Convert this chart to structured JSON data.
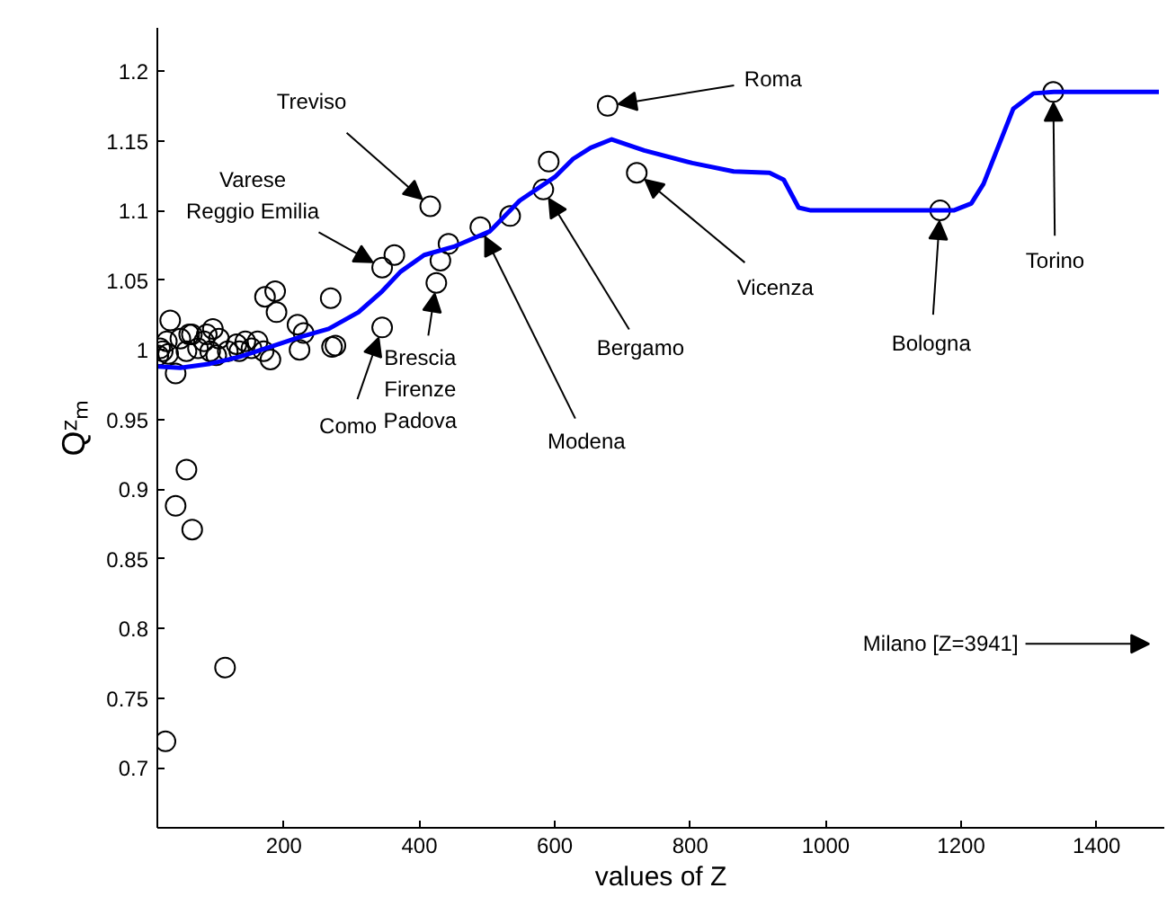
{
  "chart_data": {
    "type": "scatter",
    "xlabel": "values of Z",
    "ylabel": "Qᶻₘ",
    "xlim": [
      13,
      1500
    ],
    "ylim": [
      0.657,
      1.231
    ],
    "xticks": [
      200,
      400,
      600,
      800,
      1000,
      1200,
      1400
    ],
    "yticks": [
      0.7,
      0.75,
      0.8,
      0.85,
      0.9,
      0.95,
      1,
      1.05,
      1.1,
      1.15,
      1.2
    ],
    "series": [
      {
        "color": "#000000",
        "marker": "circle",
        "x": [
          416,
          345,
          363,
          345,
          425,
          431,
          443,
          490,
          534,
          583,
          591,
          678,
          721,
          1169,
          1336,
          56,
          40,
          64.5,
          113,
          25,
          271,
          276,
          269,
          223,
          220,
          229,
          187,
          172,
          189,
          180,
          170,
          161,
          143,
          130,
          117,
          95,
          82,
          64,
          47,
          32,
          40,
          21,
          17,
          14.5,
          29,
          56,
          73,
          91,
          104,
          134,
          152,
          86,
          60,
          27,
          100
        ],
        "values": [
          1.103,
          1.059,
          1.068,
          1.016,
          1.048,
          1.064,
          1.076,
          1.088,
          1.096,
          1.115,
          1.135,
          1.175,
          1.127,
          1.1,
          1.185,
          0.914,
          0.888,
          0.871,
          0.772,
          0.719,
          1.002,
          1.003,
          1.037,
          1.0,
          1.018,
          1.012,
          1.042,
          1.038,
          1.027,
          0.993,
          0.999,
          1.006,
          1.006,
          1.004,
          0.999,
          1.015,
          1.006,
          1.011,
          1.008,
          1.021,
          0.983,
          0.999,
          1.001,
          0.996,
          0.997,
          0.999,
          1.001,
          0.999,
          1.008,
          0.999,
          1.001,
          1.011,
          1.011,
          1.006,
          0.996
        ]
      },
      {
        "type": "line",
        "color": "#0000ff",
        "x": [
          13.5,
          47,
          91,
          135,
          179,
          223,
          266,
          310,
          345,
          372,
          407,
          451,
          504,
          548,
          600,
          627,
          653,
          684,
          732,
          803,
          864,
          917,
          938,
          960,
          978,
          1189,
          1215,
          1233,
          1277,
          1307,
          1337,
          1492
        ],
        "values": [
          0.988,
          0.987,
          0.99,
          0.995,
          1.002,
          1.009,
          1.015,
          1.027,
          1.042,
          1.056,
          1.068,
          1.074,
          1.085,
          1.107,
          1.124,
          1.137,
          1.145,
          1.151,
          1.143,
          1.134,
          1.128,
          1.127,
          1.122,
          1.102,
          1.1,
          1.1,
          1.105,
          1.119,
          1.173,
          1.184,
          1.185,
          1.185
        ]
      }
    ],
    "annotations": [
      {
        "text": "Treviso",
        "x": 416,
        "y": 1.103
      },
      {
        "text": "Varese\nReggio Emilia",
        "x": 345,
        "y": 1.059
      },
      {
        "text": "Como",
        "x": 345,
        "y": 1.016
      },
      {
        "text": "Brescia\nFirenze\nPadova",
        "x": 425,
        "y": 1.048
      },
      {
        "text": "Modena",
        "x": 490,
        "y": 1.088
      },
      {
        "text": "Bergamo",
        "x": 583,
        "y": 1.115
      },
      {
        "text": "Roma",
        "x": 678,
        "y": 1.175
      },
      {
        "text": "Vicenza",
        "x": 721,
        "y": 1.127
      },
      {
        "text": "Bologna",
        "x": 1169,
        "y": 1.1
      },
      {
        "text": "Torino",
        "x": 1336,
        "y": 1.185
      },
      "Milano [Z=3941]"
    ]
  }
}
